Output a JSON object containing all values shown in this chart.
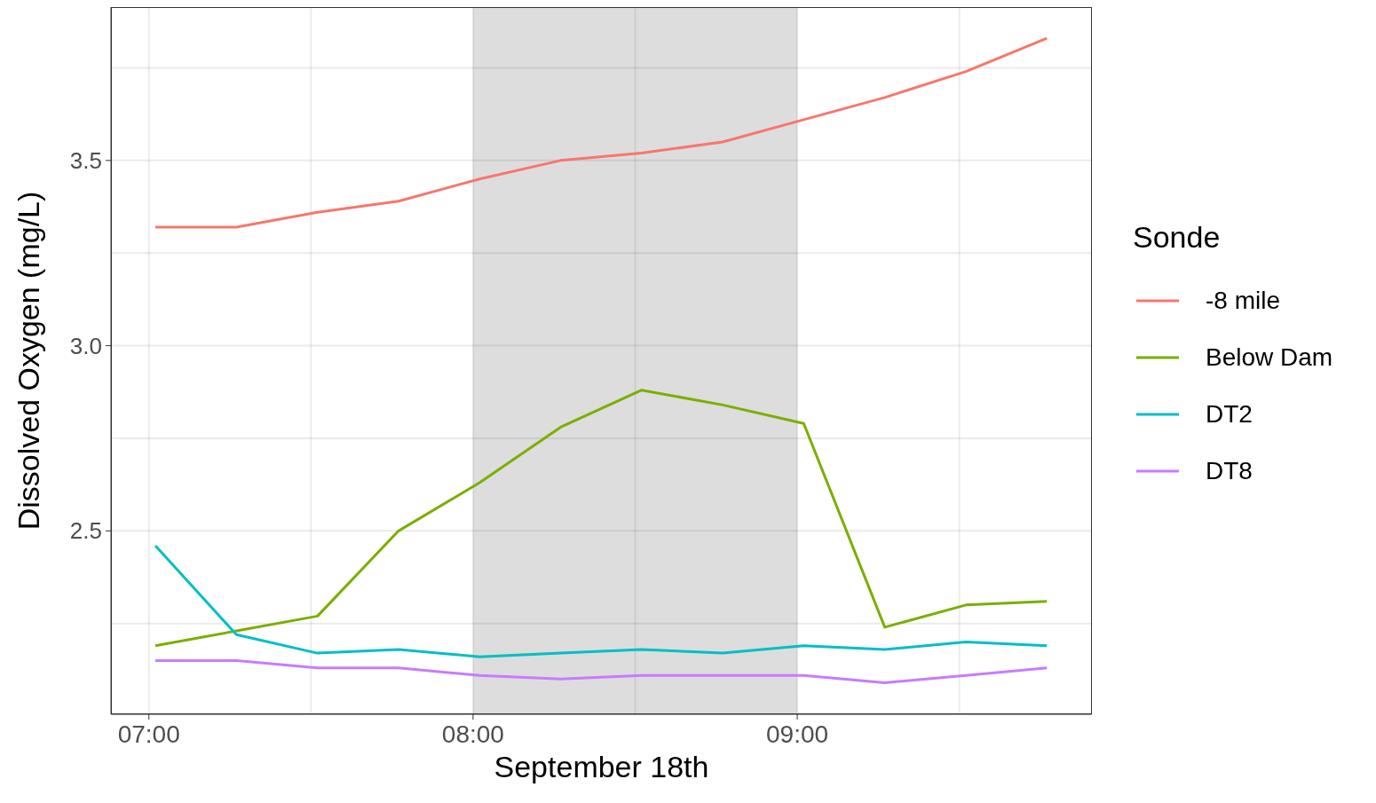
{
  "chart_data": {
    "type": "line",
    "xlabel": "September 18th",
    "ylabel": "Dissolved Oxygen (mg/L)",
    "legend_title": "Sonde",
    "legend": "right",
    "grid": true,
    "x": [
      7.02,
      7.27,
      7.52,
      7.77,
      8.02,
      8.27,
      8.52,
      8.77,
      9.02,
      9.27,
      9.52,
      9.77
    ],
    "xlim": [
      6.883,
      9.909
    ],
    "xticks": [
      {
        "value": 7,
        "label": "07:00"
      },
      {
        "value": 7.5,
        "label": null
      },
      {
        "value": 8,
        "label": "08:00"
      },
      {
        "value": 8.5,
        "label": null
      },
      {
        "value": 9,
        "label": "09:00"
      },
      {
        "value": 9.5,
        "label": null
      }
    ],
    "ylim": [
      2.005,
      3.914
    ],
    "yticks": [
      {
        "value": 2.25,
        "label": null
      },
      2.5,
      {
        "value": 2.75,
        "label": null
      },
      {
        "value": 3,
        "label": "3.0"
      },
      {
        "value": 3.25,
        "label": null
      },
      3.5,
      {
        "value": 3.75,
        "label": null
      }
    ],
    "bands": [
      {
        "axis": "x",
        "from": 8,
        "to": 9,
        "color": "#dddddd"
      }
    ],
    "series": [
      {
        "name": "-8 mile",
        "color": "#f8766d",
        "values": [
          3.32,
          3.32,
          3.36,
          3.39,
          3.45,
          3.5,
          3.52,
          3.55,
          3.61,
          3.67,
          3.74,
          3.83
        ]
      },
      {
        "name": "Below Dam",
        "color": "#7cae00",
        "values": [
          2.19,
          2.23,
          2.27,
          2.5,
          2.63,
          2.78,
          2.88,
          2.84,
          2.79,
          2.24,
          2.3,
          2.31
        ]
      },
      {
        "name": "DT2",
        "color": "#00bfc4",
        "values": [
          2.46,
          2.22,
          2.17,
          2.18,
          2.16,
          2.17,
          2.18,
          2.17,
          2.19,
          2.18,
          2.2,
          2.19
        ]
      },
      {
        "name": "DT8",
        "color": "#c77cff",
        "values": [
          2.15,
          2.15,
          2.13,
          2.13,
          2.11,
          2.1,
          2.11,
          2.11,
          2.11,
          2.09,
          2.11,
          2.13
        ]
      }
    ]
  }
}
